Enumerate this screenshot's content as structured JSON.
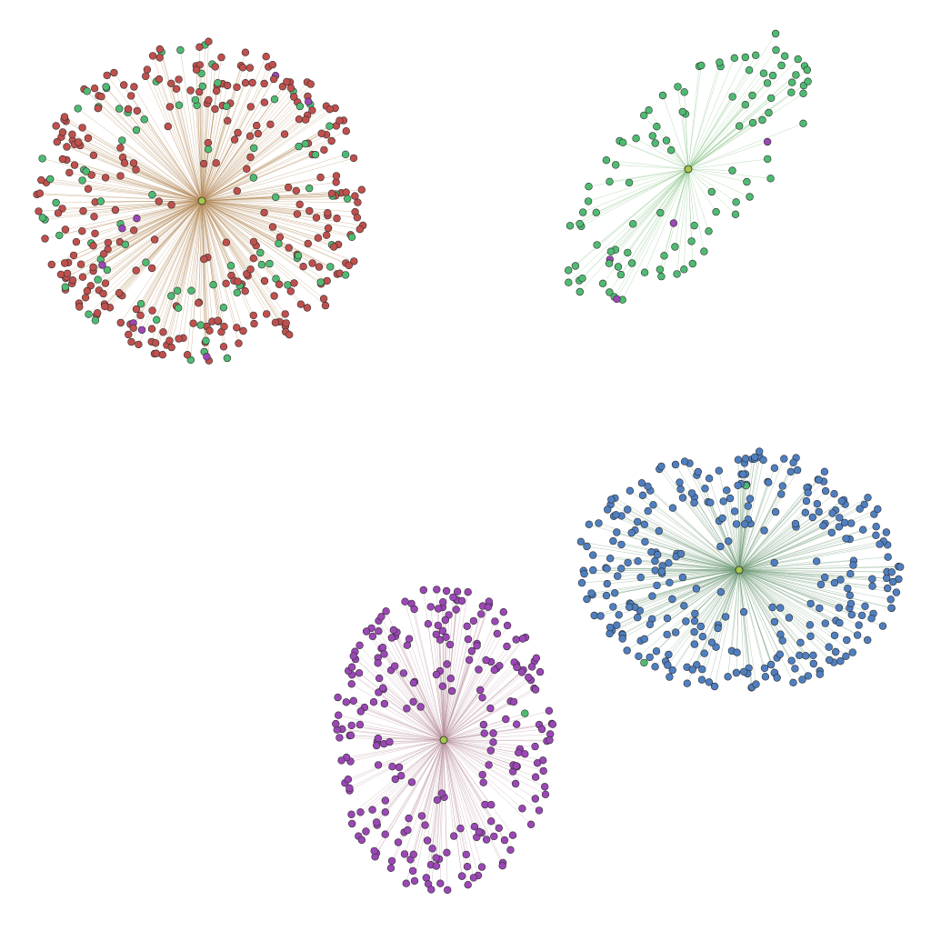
{
  "diagram": {
    "type": "star-network",
    "background": "#ffffff",
    "palette": {
      "red": "#c0504d",
      "green": "#4fbb72",
      "purple": "#9b47b5",
      "blue": "#4f7fc0",
      "hub": "#a6c84a"
    },
    "clusters": [
      {
        "id": "cluster-red",
        "hub_color": "#a6c84a",
        "edge_color": "#b58a5a",
        "node_counts": {
          "red": 300,
          "green": 90,
          "purple": 8
        }
      },
      {
        "id": "cluster-green",
        "hub_color": "#a6c84a",
        "edge_color": "#7fbf7f",
        "node_counts": {
          "green": 100,
          "purple": 4
        }
      },
      {
        "id": "cluster-blue",
        "hub_color": "#a6c84a",
        "edge_color": "#6f9a78",
        "node_counts": {
          "blue": 315,
          "green": 2
        }
      },
      {
        "id": "cluster-purple",
        "hub_color": "#a6c84a",
        "edge_color": "#b8909c",
        "node_counts": {
          "purple": 255,
          "green": 1
        }
      }
    ]
  }
}
